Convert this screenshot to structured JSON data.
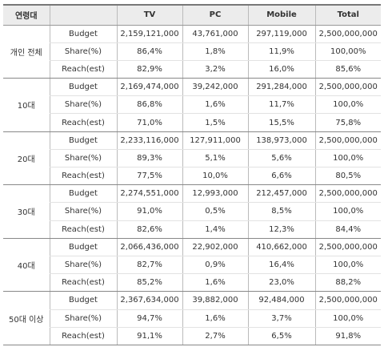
{
  "headers": [
    "연령대",
    "",
    "TV",
    "PC",
    "Mobile",
    "Total"
  ],
  "groups": [
    {
      "label": "개인 전체",
      "rows": [
        {
          "metric": "Budget",
          "values": [
            "2,159,121,000",
            "43,761,000",
            "297,119,000",
            "2,500,000,000"
          ]
        },
        {
          "metric": "Share(%)",
          "values": [
            "86,4%",
            "1,8%",
            "11,9%",
            "100,00%"
          ]
        },
        {
          "metric": "Reach(est)",
          "values": [
            "82,9%",
            "3,2%",
            "16,0%",
            "85,6%"
          ]
        }
      ]
    },
    {
      "label": "10대",
      "rows": [
        {
          "metric": "Budget",
          "values": [
            "2,169,474,000",
            "39,242,000",
            "291,284,000",
            "2,500,000,000"
          ]
        },
        {
          "metric": "Share(%)",
          "values": [
            "86,8%",
            "1,6%",
            "11,7%",
            "100,0%"
          ]
        },
        {
          "metric": "Reach(est)",
          "values": [
            "71,0%",
            "1,5%",
            "15,5%",
            "75,8%"
          ]
        }
      ]
    },
    {
      "label": "20대",
      "rows": [
        {
          "metric": "Budget",
          "values": [
            "2,233,116,000",
            "127,911,000",
            "138,973,000",
            "2,500,000,000"
          ]
        },
        {
          "metric": "Share(%)",
          "values": [
            "89,3%",
            "5,1%",
            "5,6%",
            "100,0%"
          ]
        },
        {
          "metric": "Reach(est)",
          "values": [
            "77,5%",
            "10,0%",
            "6,6%",
            "80,5%"
          ]
        }
      ]
    },
    {
      "label": "30대",
      "rows": [
        {
          "metric": "Budget",
          "values": [
            "2,274,551,000",
            "12,993,000",
            "212,457,000",
            "2,500,000,000"
          ]
        },
        {
          "metric": "Share(%)",
          "values": [
            "91,0%",
            "0,5%",
            "8,5%",
            "100,0%"
          ]
        },
        {
          "metric": "Reach(est)",
          "values": [
            "82,6%",
            "1,4%",
            "12,3%",
            "84,4%"
          ]
        }
      ]
    },
    {
      "label": "40대",
      "rows": [
        {
          "metric": "Budget",
          "values": [
            "2,066,436,000",
            "22,902,000",
            "410,662,000",
            "2,500,000,000"
          ]
        },
        {
          "metric": "Share(%)",
          "values": [
            "82,7%",
            "0,9%",
            "16,4%",
            "100,0%"
          ]
        },
        {
          "metric": "Reach(est)",
          "values": [
            "85,2%",
            "1,6%",
            "23,0%",
            "88,2%"
          ]
        }
      ]
    },
    {
      "label": "50대 이상",
      "rows": [
        {
          "metric": "Budget",
          "values": [
            "2,367,634,000",
            "39,882,000",
            "92,484,000",
            "2,500,000,000"
          ]
        },
        {
          "metric": "Share(%)",
          "values": [
            "94,7%",
            "1,6%",
            "3,7%",
            "100,0%"
          ]
        },
        {
          "metric": "Reach(est)",
          "values": [
            "91,1%",
            "2,7%",
            "6,5%",
            "91,8%"
          ]
        }
      ]
    }
  ]
}
